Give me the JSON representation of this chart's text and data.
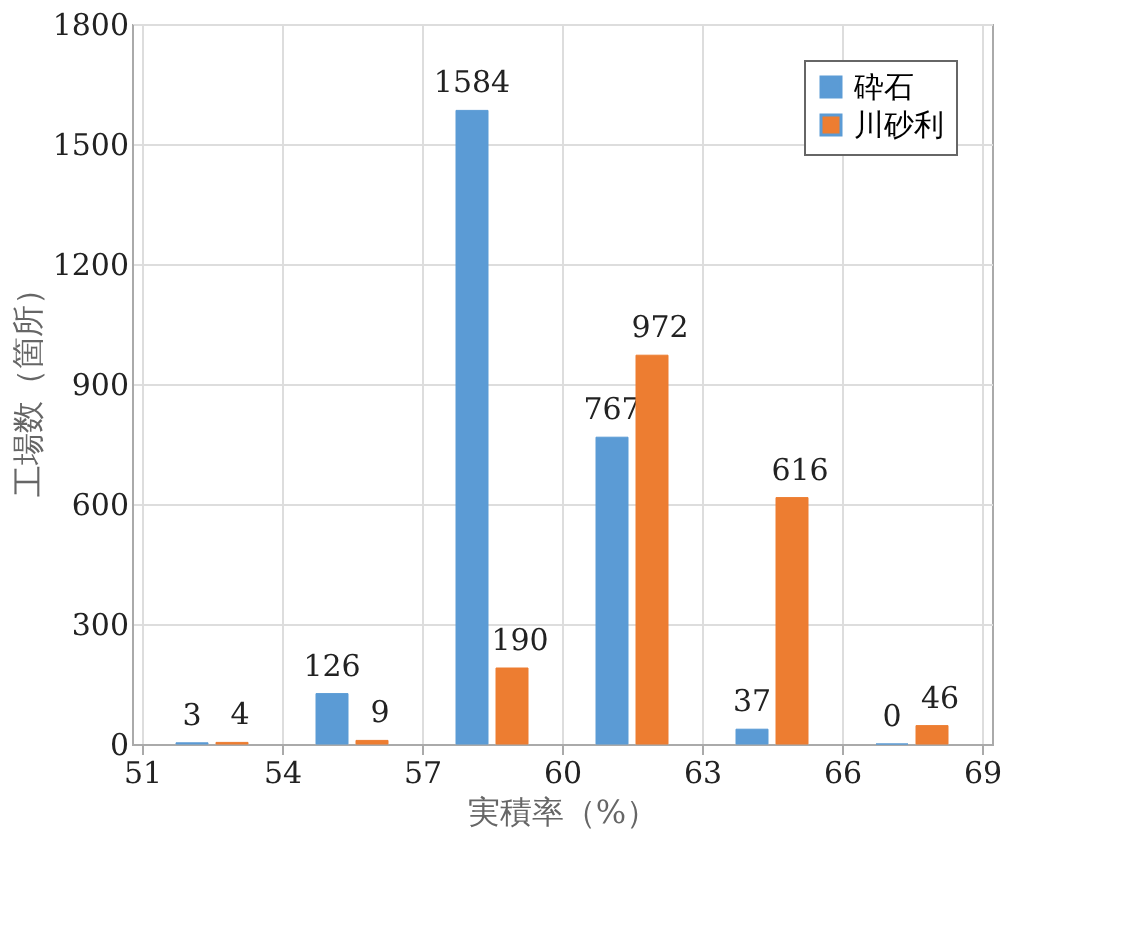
{
  "chart_data": {
    "type": "bar",
    "xlabel": "実積率（%）",
    "ylabel": "工場数（箇所）",
    "x": [
      52.5,
      55.5,
      58.5,
      61.5,
      64.5,
      67.5
    ],
    "xlim": [
      51,
      69
    ],
    "xticks": [
      51,
      54,
      57,
      60,
      63,
      66,
      69
    ],
    "ylim": [
      0,
      1800
    ],
    "yticks": [
      0,
      300,
      600,
      900,
      1200,
      1500,
      1800
    ],
    "series": [
      {
        "name": "砕石",
        "color": "#5b9bd5",
        "values": [
          3,
          126,
          1584,
          767,
          37,
          0
        ]
      },
      {
        "name": "川砂利",
        "color": "#ed7d31",
        "values": [
          4,
          9,
          190,
          972,
          616,
          46
        ]
      }
    ],
    "data_labels": true,
    "legend": "top right",
    "grid": true
  }
}
